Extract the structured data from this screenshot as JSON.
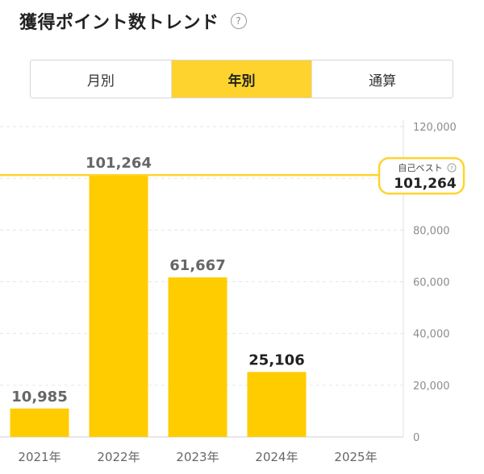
{
  "header": {
    "title": "獲得ポイント数トレンド",
    "help_icon": "question-circle-icon"
  },
  "tabs": [
    {
      "label": "月別",
      "active": false
    },
    {
      "label": "年別",
      "active": true
    },
    {
      "label": "通算",
      "active": false
    }
  ],
  "colors": {
    "accent": "#FFD32E",
    "bar": "#FFCC00",
    "grid": "#e6e6e6",
    "axis_text": "#8c8c8c",
    "label_text": "#333333"
  },
  "chart_data": {
    "type": "bar",
    "categories": [
      "2021年",
      "2022年",
      "2023年",
      "2024年",
      "2025年"
    ],
    "values": [
      10985,
      101264,
      61667,
      25106,
      null
    ],
    "value_labels": [
      "10,985",
      "101,264",
      "61,667",
      "25,106",
      ""
    ],
    "yticks": [
      0,
      20000,
      40000,
      60000,
      80000,
      100000,
      120000
    ],
    "ytick_labels": [
      "0",
      "20,000",
      "40,000",
      "60,000",
      "80,000",
      "",
      "120,000"
    ],
    "ylim": [
      0,
      120000
    ],
    "yaxis_position": "right",
    "grid": true,
    "reference_line": {
      "label": "自己ベスト",
      "value": 101264,
      "value_label": "101,264",
      "icon": "question-circle-icon"
    }
  }
}
